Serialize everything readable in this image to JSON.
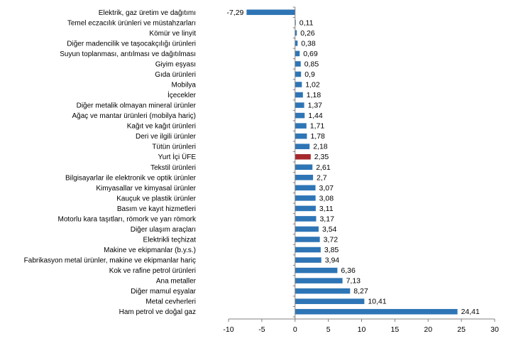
{
  "chart_data": {
    "type": "bar",
    "orientation": "horizontal",
    "categories": [
      "Elektrik, gaz üretim ve dağıtımı",
      "Temel eczacılık ürünleri ve müstahzarları",
      "Kömür ve linyit",
      "Diğer madencilik ve taşocakçılığı ürünleri",
      "Suyun toplanması, arıtılması ve dağıtılması",
      "Giyim eşyası",
      "Gıda ürünleri",
      "Mobilya",
      "İçecekler",
      "Diğer metalik olmayan mineral ürünler",
      "Ağaç ve mantar ürünleri (mobilya hariç)",
      "Kağıt ve kağıt ürünleri",
      "Deri ve ilgili ürünler",
      "Tütün ürünleri",
      "Yurt İçi ÜFE",
      "Tekstil ürünleri",
      "Bilgisayarlar ile elektronik ve optik ürünler",
      "Kimyasallar ve kimyasal ürünler",
      "Kauçuk ve plastik ürünler",
      "Basım ve kayıt hizmetleri",
      "Motorlu kara taşıtları, römork ve yarı römork",
      "Diğer ulaşım araçları",
      "Elektrikli teçhizat",
      "Makine ve ekipmanlar (b.y.s.)",
      "Fabrikasyon metal ürünler, makine ve ekipmanlar hariç",
      "Kok ve rafine petrol ürünleri",
      "Ana metaller",
      "Diğer mamul eşyalar",
      "Metal cevherleri",
      "Ham petrol ve doğal gaz"
    ],
    "values": [
      -7.29,
      0.11,
      0.26,
      0.38,
      0.69,
      0.85,
      0.9,
      1.02,
      1.18,
      1.37,
      1.44,
      1.71,
      1.78,
      2.18,
      2.35,
      2.61,
      2.7,
      3.07,
      3.08,
      3.11,
      3.17,
      3.54,
      3.72,
      3.85,
      3.94,
      6.36,
      7.13,
      8.27,
      10.41,
      24.41
    ],
    "value_labels": [
      "-7,29",
      "0,11",
      "0,26",
      "0,38",
      "0,69",
      "0,85",
      "0,9",
      "1,02",
      "1,18",
      "1,37",
      "1,44",
      "1,71",
      "1,78",
      "2,18",
      "2,35",
      "2,61",
      "2,7",
      "3,07",
      "3,08",
      "3,11",
      "3,17",
      "3,54",
      "3,72",
      "3,85",
      "3,94",
      "6,36",
      "7,13",
      "8,27",
      "10,41",
      "24,41"
    ],
    "highlight_category": "Yurt İçi ÜFE",
    "xlim": [
      -10,
      30
    ],
    "xticks": [
      -10,
      -5,
      0,
      5,
      10,
      15,
      20,
      25,
      30
    ],
    "grid": false,
    "legend": "none",
    "title": "",
    "xlabel": "",
    "ylabel": "",
    "colors": {
      "bar": "#2E75B6",
      "highlight": "#A5282D",
      "axis": "#808080"
    }
  }
}
